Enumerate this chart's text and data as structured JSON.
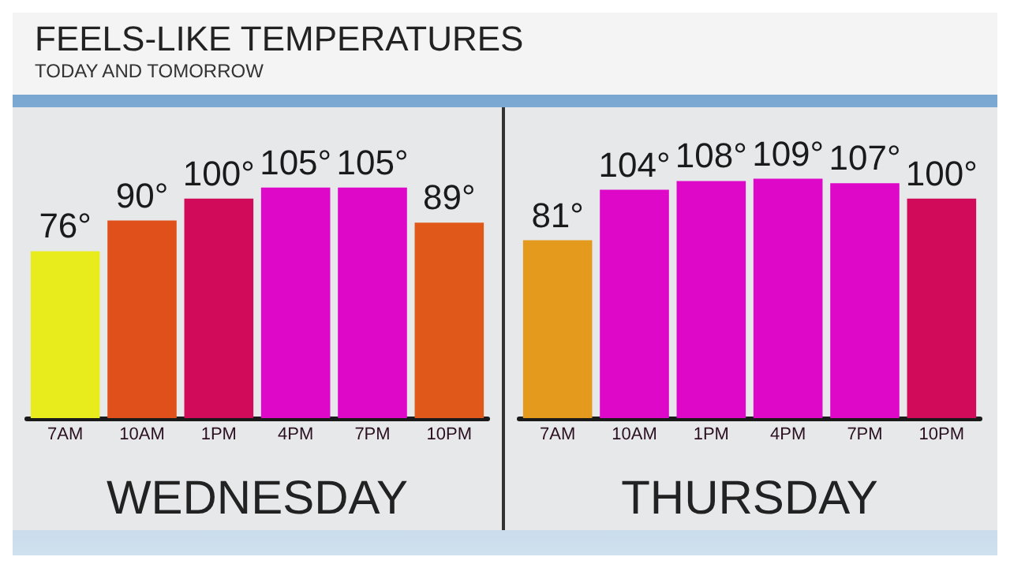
{
  "chart_data": [
    {
      "type": "bar",
      "title": "FEELS-LIKE TEMPERATURES",
      "subtitle": "TODAY AND TOMORROW",
      "xlabel": "WEDNESDAY",
      "categories": [
        "7AM",
        "10AM",
        "1PM",
        "4PM",
        "7PM",
        "10PM"
      ],
      "values": [
        76,
        90,
        100,
        105,
        105,
        89
      ],
      "colors": [
        "#e8ec1c",
        "#e0501a",
        "#d20a5a",
        "#de08c8",
        "#de08c8",
        "#e0581a"
      ],
      "value_labels": [
        "76°",
        "90°",
        "100°",
        "105°",
        "105°",
        "89°"
      ]
    },
    {
      "type": "bar",
      "xlabel": "THURSDAY",
      "categories": [
        "7AM",
        "10AM",
        "1PM",
        "4PM",
        "7PM",
        "10PM"
      ],
      "values": [
        81,
        104,
        108,
        109,
        107,
        100
      ],
      "colors": [
        "#e49a1c",
        "#de08c8",
        "#de08c8",
        "#de08c8",
        "#de08c8",
        "#d20a5a"
      ],
      "value_labels": [
        "81°",
        "104°",
        "108°",
        "109°",
        "107°",
        "100°"
      ]
    }
  ]
}
